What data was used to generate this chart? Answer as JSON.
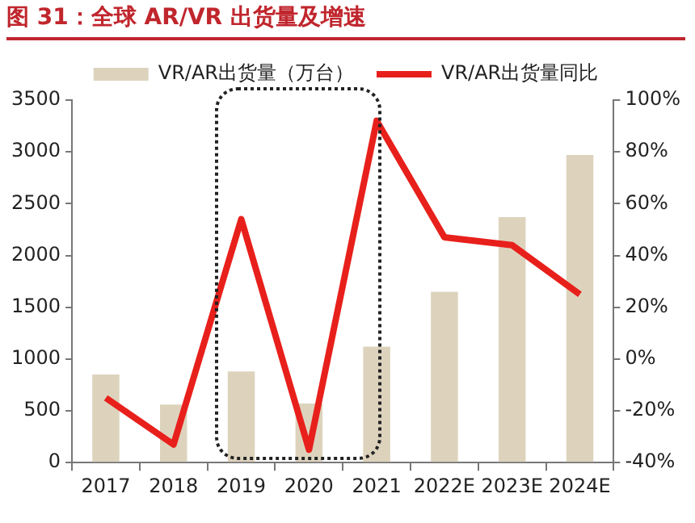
{
  "chart_data": {
    "type": "bar",
    "title": "图 31：全球 AR/VR 出货量及增速",
    "categories": [
      "2017",
      "2018",
      "2019",
      "2020",
      "2021",
      "2022E",
      "2023E",
      "2024E"
    ],
    "series": [
      {
        "name": "VR/AR出货量（万台）",
        "color": "#ddd3bd",
        "values": [
          850,
          560,
          880,
          570,
          1120,
          1650,
          2370,
          2970
        ]
      },
      {
        "name": "VR/AR出货量同比",
        "type": "line",
        "axis": "y2",
        "color": "#e8201c",
        "values": [
          -15,
          -33,
          54,
          -35,
          92,
          47,
          44,
          25
        ]
      }
    ],
    "ylim": [
      0,
      3500
    ],
    "yticks": [
      0,
      500,
      1000,
      1500,
      2000,
      2500,
      3000,
      3500
    ],
    "y2lim": [
      -40,
      100
    ],
    "y2ticks": [
      {
        "value": -40,
        "label": "-40%"
      },
      {
        "value": -20,
        "label": "-20%"
      },
      {
        "value": 0,
        "label": "0%"
      },
      {
        "value": 20,
        "label": "20%"
      },
      {
        "value": 40,
        "label": "40%"
      },
      {
        "value": 60,
        "label": "60%"
      },
      {
        "value": 80,
        "label": "80%"
      },
      {
        "value": 100,
        "label": "100%"
      }
    ],
    "grid": false,
    "legend": "top",
    "marker": "none",
    "line_style": "solid"
  }
}
